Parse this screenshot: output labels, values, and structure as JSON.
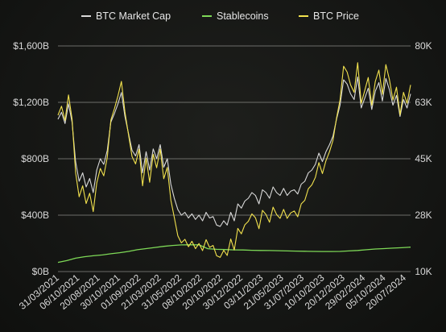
{
  "chart_data": {
    "type": "line",
    "title": "",
    "legend": {
      "placement": "top-center",
      "entries": [
        {
          "name": "BTC Market Cap",
          "color": "#d9d9d9"
        },
        {
          "name": "Stablecoins",
          "color": "#7ed957"
        },
        {
          "name": "BTC Price",
          "color": "#f2e24e"
        }
      ]
    },
    "grid": true,
    "x_tick_labels": [
      "31/03/2021",
      "06/10/2021",
      "20/08/2021",
      "30/10/2021",
      "01/09/2022",
      "21/03/2022",
      "31/05/2022",
      "08/10/2022",
      "20/10/2022",
      "30/12/2022",
      "03/11/2023",
      "21/05/2023",
      "31/07/2023",
      "10/10/2023",
      "20/12/2023",
      "29/02/2024",
      "05/10/2024",
      "20/07/2024"
    ],
    "y_left": {
      "tick_labels": [
        "$0B",
        "$400B",
        "$800B",
        "$1,200B",
        "$1,600B"
      ],
      "ylim": [
        0,
        1600
      ],
      "unit": "B"
    },
    "y_right": {
      "tick_labels": [
        "10K",
        "28K",
        "45K",
        "63K",
        "80K"
      ],
      "ylim": [
        10,
        80
      ],
      "unit": "K"
    },
    "x_range": [
      0,
      40
    ],
    "series": [
      {
        "name": "BTC Market Cap",
        "axis": "left",
        "color": "#d9d9d9",
        "x": [
          0,
          0.4,
          0.8,
          1.2,
          1.6,
          2.0,
          2.4,
          2.8,
          3.2,
          3.6,
          4.0,
          4.4,
          4.8,
          5.2,
          5.6,
          6.0,
          6.4,
          6.8,
          7.2,
          7.6,
          8.0,
          8.4,
          8.8,
          9.2,
          9.6,
          10.0,
          10.4,
          10.8,
          11.2,
          11.6,
          12.0,
          12.4,
          12.8,
          13.2,
          13.6,
          14.0,
          14.4,
          14.8,
          15.2,
          15.6,
          16.0,
          16.4,
          16.8,
          17.2,
          17.6,
          18.0,
          18.4,
          18.8,
          19.2,
          19.6,
          20.0,
          20.4,
          20.8,
          21.2,
          21.6,
          22.0,
          22.4,
          22.8,
          23.2,
          23.6,
          24.0,
          24.4,
          24.8,
          25.2,
          25.6,
          26.0,
          26.4,
          26.8,
          27.2,
          27.6,
          28.0,
          28.4,
          28.8,
          29.2,
          29.6,
          30.0,
          30.4,
          30.8,
          31.2,
          31.6,
          32.0,
          32.4,
          32.8,
          33.2,
          33.6,
          34.0,
          34.4,
          34.8,
          35.2,
          35.6,
          36.0,
          36.4,
          36.8,
          37.2,
          37.6,
          38.0,
          38.4,
          38.8,
          39.2,
          39.6,
          40.0
        ],
        "values": [
          1080,
          1130,
          1050,
          1190,
          1060,
          780,
          640,
          700,
          600,
          660,
          560,
          720,
          800,
          760,
          860,
          1060,
          1120,
          1190,
          1270,
          1100,
          980,
          860,
          820,
          900,
          700,
          850,
          720,
          870,
          800,
          900,
          740,
          800,
          620,
          520,
          440,
          400,
          420,
          380,
          410,
          370,
          400,
          360,
          420,
          380,
          390,
          330,
          320,
          360,
          330,
          420,
          360,
          480,
          450,
          500,
          520,
          560,
          540,
          480,
          580,
          560,
          520,
          600,
          560,
          540,
          590,
          540,
          570,
          580,
          550,
          620,
          640,
          700,
          720,
          760,
          840,
          780,
          850,
          900,
          960,
          1080,
          1180,
          1360,
          1330,
          1260,
          1220,
          1380,
          1160,
          1230,
          1300,
          1150,
          1280,
          1340,
          1210,
          1370,
          1290,
          1180,
          1250,
          1100,
          1220,
          1160,
          1260
        ]
      },
      {
        "name": "BTC Price",
        "axis": "right",
        "color": "#f2e24e",
        "x": [
          0,
          0.4,
          0.8,
          1.2,
          1.6,
          2.0,
          2.4,
          2.8,
          3.2,
          3.6,
          4.0,
          4.4,
          4.8,
          5.2,
          5.6,
          6.0,
          6.4,
          6.8,
          7.2,
          7.6,
          8.0,
          8.4,
          8.8,
          9.2,
          9.6,
          10.0,
          10.4,
          10.8,
          11.2,
          11.6,
          12.0,
          12.4,
          12.8,
          13.2,
          13.6,
          14.0,
          14.4,
          14.8,
          15.2,
          15.6,
          16.0,
          16.4,
          16.8,
          17.2,
          17.6,
          18.0,
          18.4,
          18.8,
          19.2,
          19.6,
          20.0,
          20.4,
          20.8,
          21.2,
          21.6,
          22.0,
          22.4,
          22.8,
          23.2,
          23.6,
          24.0,
          24.4,
          24.8,
          25.2,
          25.6,
          26.0,
          26.4,
          26.8,
          27.2,
          27.6,
          28.0,
          28.4,
          28.8,
          29.2,
          29.6,
          30.0,
          30.4,
          30.8,
          31.2,
          31.6,
          32.0,
          32.4,
          32.8,
          33.2,
          33.6,
          34.0,
          34.4,
          34.8,
          35.2,
          35.6,
          36.0,
          36.4,
          36.8,
          37.2,
          37.6,
          38.0,
          38.4,
          38.8,
          39.2,
          39.6,
          40.0
        ],
        "values": [
          58.5,
          61.3,
          56.9,
          64.8,
          57.4,
          40.7,
          33.2,
          36.6,
          31.1,
          34.3,
          28.6,
          37.5,
          42.0,
          39.7,
          45.5,
          57.0,
          60.5,
          64.5,
          69.0,
          59.5,
          52.5,
          45.7,
          43.4,
          48.0,
          36.6,
          45.2,
          37.7,
          46.4,
          42.2,
          48.0,
          38.8,
          42.3,
          32.2,
          26.8,
          21.1,
          18.9,
          20.0,
          17.7,
          19.4,
          17.1,
          18.7,
          16.5,
          19.9,
          17.5,
          18.1,
          14.9,
          14.4,
          16.6,
          15.0,
          20.1,
          16.7,
          23.4,
          21.7,
          24.5,
          25.6,
          27.9,
          26.7,
          23.3,
          29.0,
          27.7,
          25.3,
          30.0,
          27.7,
          26.5,
          29.3,
          26.5,
          28.2,
          28.8,
          27.0,
          31.0,
          32.1,
          35.7,
          36.9,
          39.2,
          43.8,
          40.4,
          44.4,
          47.2,
          50.7,
          57.6,
          63.3,
          73.7,
          71.9,
          67.9,
          65.6,
          74.8,
          62.2,
          66.2,
          70.2,
          61.6,
          69.0,
          72.5,
          65.0,
          74.2,
          69.6,
          63.2,
          67.2,
          58.6,
          65.6,
          62.2,
          67.9
        ]
      },
      {
        "name": "Stablecoins",
        "axis": "left",
        "color": "#7ed957",
        "x": [
          0,
          1,
          2,
          3,
          4,
          5,
          6,
          7,
          8,
          9,
          10,
          11,
          12,
          13,
          14,
          15,
          16,
          17,
          18,
          19,
          20,
          21,
          22,
          23,
          24,
          25,
          26,
          27,
          28,
          29,
          30,
          31,
          32,
          33,
          34,
          35,
          36,
          37,
          38,
          39,
          40
        ],
        "values": [
          65,
          78,
          95,
          105,
          112,
          118,
          126,
          134,
          143,
          155,
          163,
          171,
          179,
          185,
          189,
          190,
          190,
          162,
          158,
          156,
          154,
          153,
          151,
          150,
          149,
          148,
          146,
          145,
          144,
          143,
          142,
          142,
          143,
          146,
          150,
          155,
          160,
          163,
          166,
          169,
          173
        ]
      }
    ]
  }
}
